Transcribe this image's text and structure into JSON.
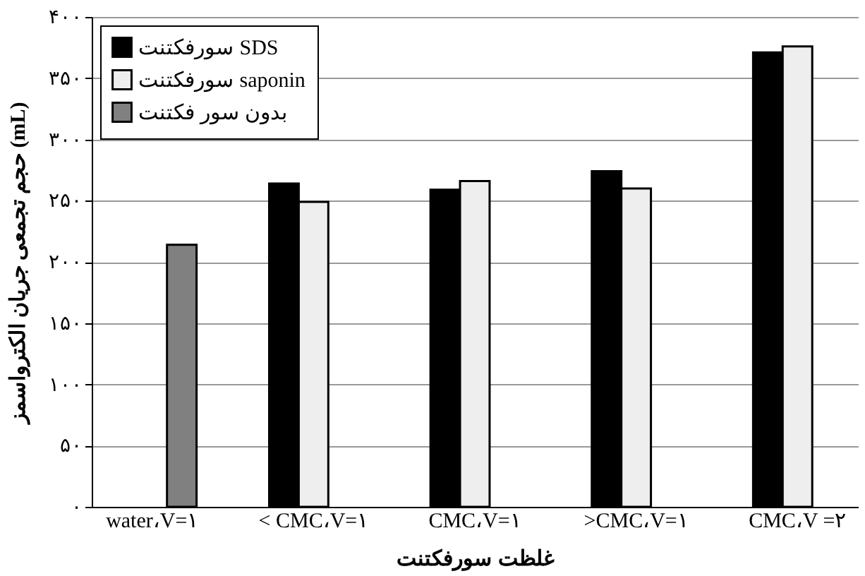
{
  "chart_data": {
    "type": "bar",
    "xlabel": "غلظت سورفکتنت",
    "ylabel": "حجم تجمعی جریان الکترواسمز (mL)",
    "categories": [
      "water،V=۱",
      "< CMC،V=۱",
      "CMC،V=۱",
      ">CMC،V=۱",
      "CMC،V =۲"
    ],
    "series": [
      {
        "name": "سورفکتنت SDS",
        "color": "#000000",
        "values": [
          null,
          264,
          259,
          274,
          371
        ]
      },
      {
        "name": "سورفکتنت saponin",
        "color": "#eeeeee",
        "values": [
          null,
          249,
          266,
          260,
          376
        ]
      },
      {
        "name": "بدون سور فکتنت",
        "color": "#808080",
        "values": [
          214,
          null,
          null,
          null,
          null
        ]
      }
    ],
    "ylim": [
      0,
      400
    ],
    "yticks": [
      {
        "value": 0,
        "label": "۰"
      },
      {
        "value": 50,
        "label": "۵۰"
      },
      {
        "value": 100,
        "label": "۱۰۰"
      },
      {
        "value": 150,
        "label": "۱۵۰"
      },
      {
        "value": 200,
        "label": "۲۰۰"
      },
      {
        "value": 250,
        "label": "۲۵۰"
      },
      {
        "value": 300,
        "label": "۳۰۰"
      },
      {
        "value": 350,
        "label": "۳۵۰"
      },
      {
        "value": 400,
        "label": "۴۰۰"
      }
    ],
    "grid": "y",
    "legend": "top left"
  }
}
